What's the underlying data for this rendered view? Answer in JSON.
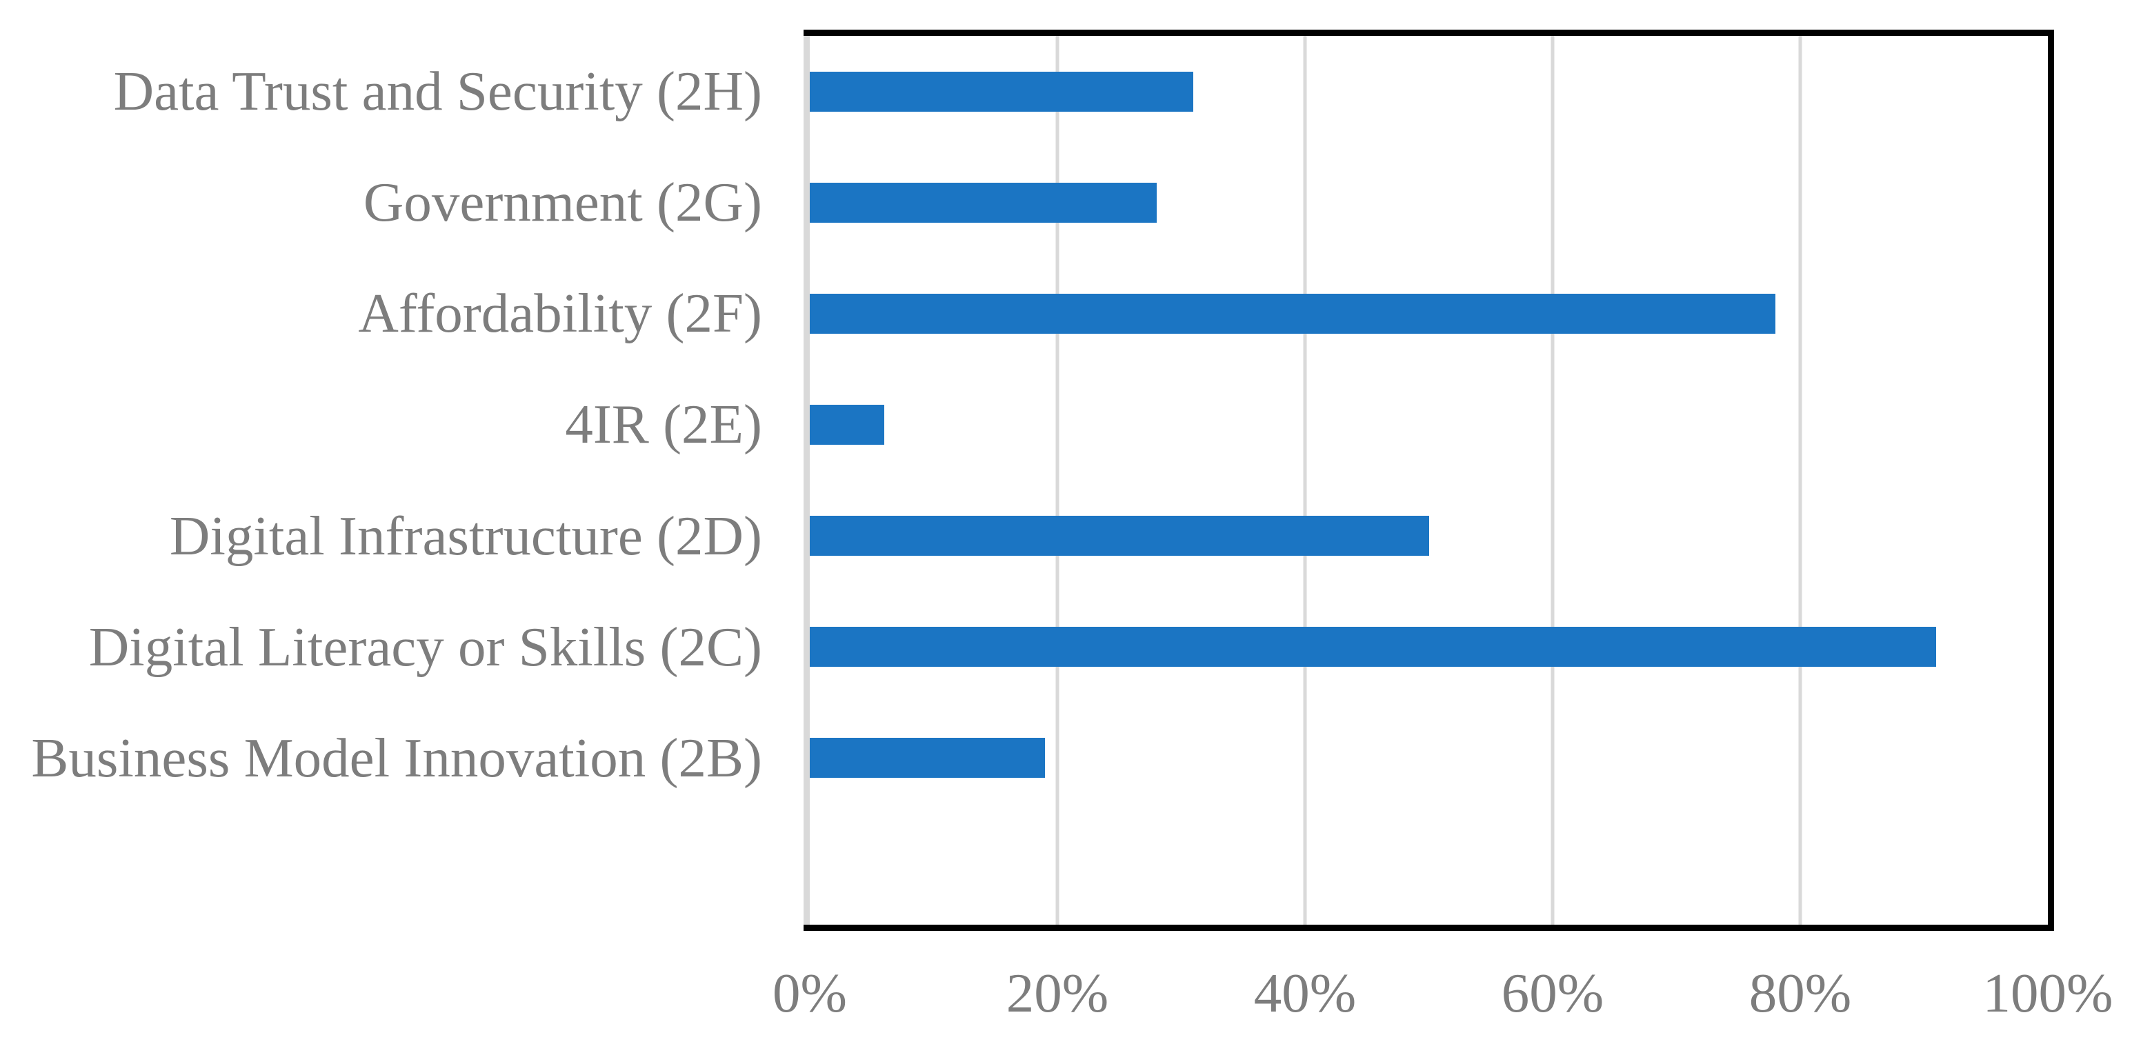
{
  "chart_data": {
    "type": "bar",
    "orientation": "horizontal",
    "title": "",
    "xlabel": "",
    "ylabel": "",
    "categories": [
      "Data Trust and Security (2H)",
      "Government (2G)",
      "Affordability (2F)",
      "4IR (2E)",
      "Digital Infrastructure (2D)",
      "Digital Literacy or Skills (2C)",
      "Business Model Innovation (2B)"
    ],
    "values": [
      31,
      28,
      78,
      6,
      50,
      91,
      19
    ],
    "unit": "%",
    "xlim": [
      0,
      100
    ],
    "x_ticks": [
      "0%",
      "20%",
      "40%",
      "60%",
      "80%",
      "100%"
    ],
    "x_tick_positions": [
      0,
      20,
      40,
      60,
      80,
      100
    ],
    "gridline_positions": [
      20,
      40,
      60,
      80
    ],
    "grid": "vertical",
    "legend": "none",
    "empty_trailing_slots": 1,
    "colors": {
      "bar": "#1b75c3",
      "gridline": "#d9d9d9",
      "axis_line": "#d9d9d9",
      "plot_border": "#000000",
      "text": "#7d7d7d",
      "background": "#ffffff"
    }
  }
}
